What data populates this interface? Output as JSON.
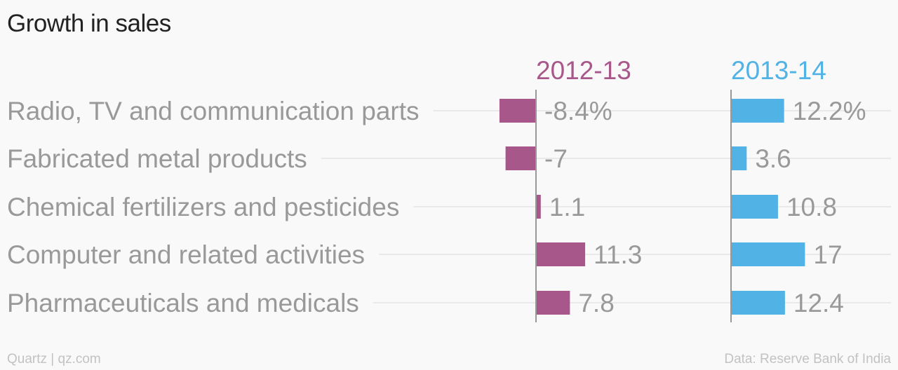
{
  "title": "Growth in sales",
  "footer": {
    "source_left": "Quartz | qz.com",
    "source_right": "Data: Reserve Bank of India"
  },
  "colors": {
    "series_2012": "#a8578a",
    "series_2013": "#51b2e5",
    "gridline": "#e9e9e9",
    "axis": "#999999",
    "label": "#999999"
  },
  "chart_data": {
    "type": "bar",
    "orientation": "horizontal",
    "title": "Growth in sales",
    "categories": [
      "Radio, TV and communication parts",
      "Fabricated metal products",
      "Chemical fertilizers and pesticides",
      "Computer and related activities",
      "Pharmaceuticals and medicals"
    ],
    "series": [
      {
        "name": "2012-13",
        "values": [
          -8.4,
          -7,
          1.1,
          11.3,
          7.8
        ],
        "labels": [
          "-8.4%",
          "-7",
          "1.1",
          "11.3",
          "7.8"
        ]
      },
      {
        "name": "2013-14",
        "values": [
          12.2,
          3.6,
          10.8,
          17,
          12.4
        ],
        "labels": [
          "12.2%",
          "3.6",
          "10.8",
          "17",
          "12.4"
        ]
      }
    ],
    "grid": true,
    "legend": "none"
  }
}
